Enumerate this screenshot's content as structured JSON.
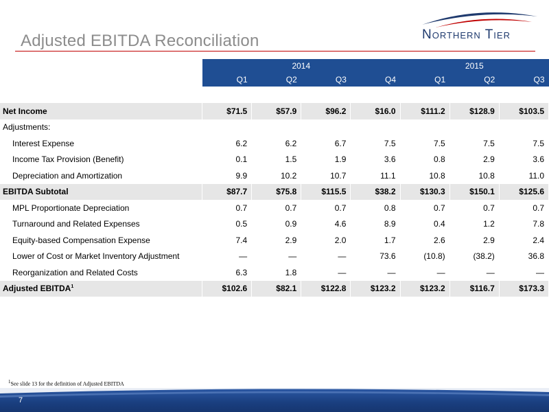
{
  "title": "Adjusted EBITDA Reconciliation",
  "logo": {
    "text": "Northern Tier"
  },
  "colors": {
    "header_blue": "#1f4e93",
    "rule_red": "#c00000",
    "row_gray": "#e6e6e6",
    "title_gray": "#8c8c8c"
  },
  "years": [
    {
      "label": "2014",
      "span": 4
    },
    {
      "label": "2015",
      "span": 3
    }
  ],
  "quarters": [
    "Q1",
    "Q2",
    "Q3",
    "Q4",
    "Q1",
    "Q2",
    "Q3"
  ],
  "rows": [
    {
      "label": "Net Income",
      "style": "bold",
      "values": [
        "$71.5",
        "$57.9",
        "$96.2",
        "$16.0",
        "$111.2",
        "$128.9",
        "$103.5"
      ]
    },
    {
      "label": "Adjustments:",
      "style": "plain",
      "values": [
        "",
        "",
        "",
        "",
        "",
        "",
        ""
      ]
    },
    {
      "label": "Interest Expense",
      "style": "indent",
      "values": [
        "6.2",
        "6.2",
        "6.7",
        "7.5",
        "7.5",
        "7.5",
        "7.5"
      ]
    },
    {
      "label": "Income Tax Provision (Benefit)",
      "style": "indent",
      "values": [
        "0.1",
        "1.5",
        "1.9",
        "3.6",
        "0.8",
        "2.9",
        "3.6"
      ]
    },
    {
      "label": "Depreciation and Amortization",
      "style": "indent",
      "values": [
        "9.9",
        "10.2",
        "10.7",
        "11.1",
        "10.8",
        "10.8",
        "11.0"
      ]
    },
    {
      "label": "EBITDA Subtotal",
      "style": "bold",
      "values": [
        "$87.7",
        "$75.8",
        "$115.5",
        "$38.2",
        "$130.3",
        "$150.1",
        "$125.6"
      ]
    },
    {
      "label": "MPL Proportionate Depreciation",
      "style": "indent",
      "values": [
        "0.7",
        "0.7",
        "0.7",
        "0.8",
        "0.7",
        "0.7",
        "0.7"
      ]
    },
    {
      "label": "Turnaround and Related Expenses",
      "style": "indent",
      "values": [
        "0.5",
        "0.9",
        "4.6",
        "8.9",
        "0.4",
        "1.2",
        "7.8"
      ]
    },
    {
      "label": "Equity-based Compensation Expense",
      "style": "indent",
      "values": [
        "7.4",
        "2.9",
        "2.0",
        "1.7",
        "2.6",
        "2.9",
        "2.4"
      ]
    },
    {
      "label": "Lower of Cost or Market Inventory Adjustment",
      "style": "indent",
      "values": [
        "—",
        "—",
        "—",
        "73.6",
        "(10.8)",
        "(38.2)",
        "36.8"
      ]
    },
    {
      "label": "Reorganization and Related Costs",
      "style": "indent",
      "values": [
        "6.3",
        "1.8",
        "—",
        "—",
        "—",
        "—",
        "—"
      ]
    },
    {
      "label": "Adjusted EBITDA",
      "label_sup": "1",
      "style": "bold",
      "values": [
        "$102.6",
        "$82.1",
        "$122.8",
        "$123.2",
        "$123.2",
        "$116.7",
        "$173.3"
      ]
    }
  ],
  "footnote": {
    "sup": "1",
    "text": "See slide 13 for the definition of Adjusted EBITDA"
  },
  "page_number": "7"
}
